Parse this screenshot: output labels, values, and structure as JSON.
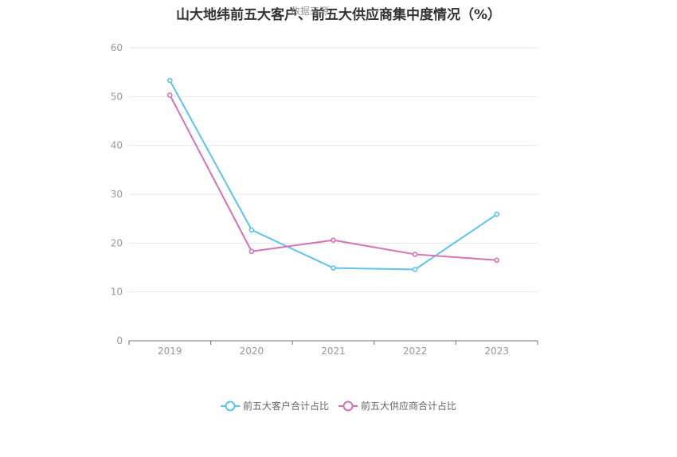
{
  "chart_data": {
    "type": "line",
    "title": "山大地纬前五大客户、前五大供应商集中度情况（%）",
    "watermark": "数据来源",
    "categories": [
      "2019",
      "2020",
      "2021",
      "2022",
      "2023"
    ],
    "ylim": [
      0,
      60
    ],
    "yticks": [
      "0",
      "10",
      "20",
      "30",
      "40",
      "50",
      "60"
    ],
    "grid": true,
    "legend_position": "bottom",
    "series": [
      {
        "name": "前五大客户合计占比",
        "color": "#5bc4ee",
        "values": [
          53.3,
          22.7,
          14.9,
          14.6,
          25.9
        ]
      },
      {
        "name": "前五大供应商合计占比",
        "color": "#d870b8",
        "values": [
          50.3,
          18.3,
          20.6,
          17.7,
          16.5
        ]
      }
    ]
  }
}
